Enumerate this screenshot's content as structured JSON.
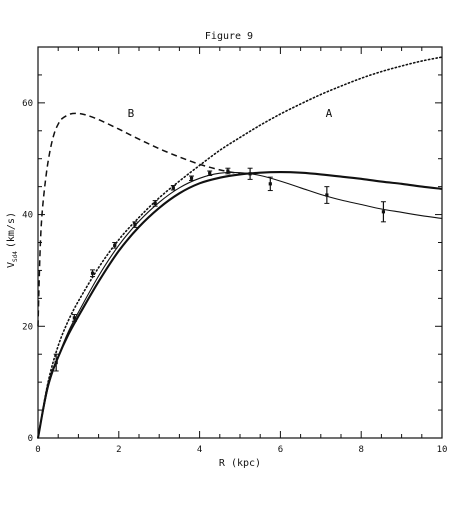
{
  "chart_data": {
    "type": "line",
    "title": "Figure 9",
    "xlabel": "R (kpc)",
    "ylabel": "V",
    "ylabel_sub": "Sd4",
    "ylabel_unit": "(km/s)",
    "xlim": [
      0,
      10
    ],
    "ylim": [
      0,
      70
    ],
    "x_ticks": [
      0,
      2,
      4,
      6,
      8,
      10
    ],
    "y_ticks": [
      0,
      20,
      40,
      60
    ],
    "grid": false,
    "colors": {
      "ink": "#111111",
      "background": "#ffffff"
    },
    "annotations": [
      {
        "text": "A",
        "x": 7.2,
        "y": 57.5
      },
      {
        "text": "B",
        "x": 2.3,
        "y": 57.5
      }
    ],
    "series": [
      {
        "name": "A",
        "style": "dotted",
        "x": [
          0,
          0.25,
          0.5,
          0.75,
          1.0,
          1.5,
          2.0,
          2.5,
          3.0,
          3.5,
          4.0,
          4.5,
          5.0,
          5.5,
          6.0,
          6.5,
          7.0,
          7.5,
          8.0,
          8.5,
          9.0,
          9.5,
          10.0
        ],
        "y": [
          0,
          10,
          16.5,
          21,
          24.5,
          30.5,
          35.5,
          39.5,
          43,
          46,
          48.8,
          51.5,
          53.8,
          56,
          58,
          59.8,
          61.5,
          63,
          64.4,
          65.6,
          66.6,
          67.5,
          68.2
        ]
      },
      {
        "name": "B",
        "style": "dashed",
        "x": [
          0,
          0.05,
          0.1,
          0.2,
          0.3,
          0.4,
          0.5,
          0.6,
          0.8,
          1.0,
          1.2,
          1.5,
          2.0,
          2.5,
          3.0,
          3.5,
          4.0,
          4.5,
          5.0
        ],
        "y": [
          20,
          33,
          40,
          47,
          51.5,
          54.5,
          56.2,
          57.2,
          58.0,
          58.1,
          57.8,
          57.0,
          55.3,
          53.5,
          51.8,
          50.3,
          49.0,
          48.0,
          47.3
        ]
      },
      {
        "name": "",
        "style": "solid-thin",
        "x": [
          0,
          0.25,
          0.5,
          0.75,
          1.0,
          1.5,
          2.0,
          2.5,
          3.0,
          3.5,
          4.0,
          4.5,
          5.0,
          5.5,
          6.0,
          6.5,
          7.0,
          7.5,
          8.0,
          8.5,
          9.0,
          9.5,
          10.0
        ],
        "y": [
          0,
          9,
          14.5,
          19,
          22.5,
          29,
          34.5,
          38.8,
          42.2,
          44.8,
          46.5,
          47.4,
          47.5,
          47.0,
          46.0,
          44.8,
          43.6,
          42.6,
          41.8,
          41.0,
          40.4,
          39.8,
          39.3
        ]
      },
      {
        "name": "",
        "style": "solid-thick",
        "x": [
          0,
          0.25,
          0.5,
          0.75,
          1.0,
          1.5,
          2.0,
          2.5,
          3.0,
          3.5,
          4.0,
          4.5,
          5.0,
          5.5,
          6.0,
          6.5,
          7.0,
          7.5,
          8.0,
          8.5,
          9.0,
          9.5,
          10.0
        ],
        "y": [
          0,
          9.5,
          14.5,
          18.5,
          21.8,
          28,
          33.5,
          37.8,
          41.2,
          43.8,
          45.6,
          46.6,
          47.2,
          47.5,
          47.6,
          47.5,
          47.2,
          46.8,
          46.4,
          45.9,
          45.5,
          45.0,
          44.6
        ]
      }
    ],
    "observations": {
      "name": "",
      "x": [
        0.45,
        0.9,
        1.35,
        1.9,
        2.4,
        2.9,
        3.35,
        3.8,
        4.25,
        4.7,
        5.25,
        5.75,
        7.15,
        8.55
      ],
      "y": [
        13.5,
        21.5,
        29.5,
        34.5,
        38.2,
        42.0,
        44.8,
        46.5,
        47.4,
        47.8,
        47.3,
        45.5,
        43.5,
        40.5
      ],
      "yerr": [
        1.5,
        0.6,
        0.6,
        0.5,
        0.5,
        0.5,
        0.4,
        0.4,
        0.4,
        0.5,
        1.0,
        1.2,
        1.5,
        1.8
      ]
    }
  }
}
